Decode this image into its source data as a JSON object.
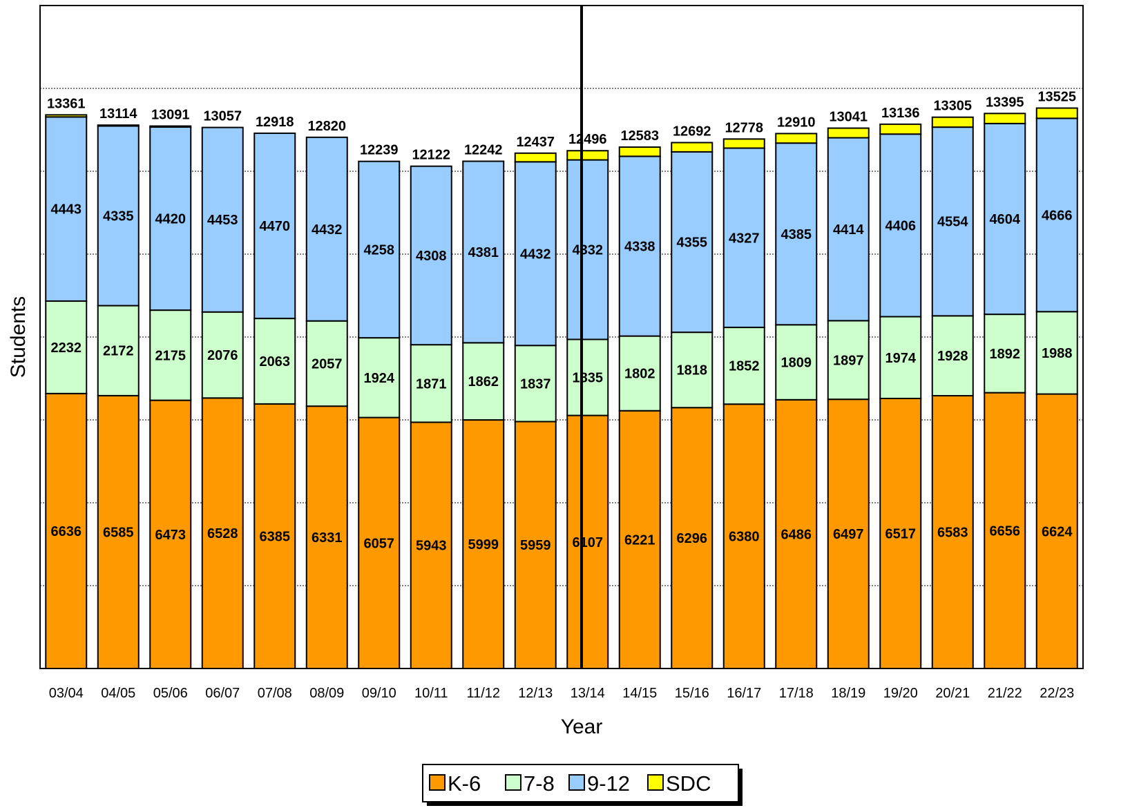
{
  "chart_data": {
    "type": "bar",
    "stacked": true,
    "xlabel": "Year",
    "ylabel": "Students",
    "ylim": [
      0,
      16000
    ],
    "grid": "horizontal dotted",
    "legend_position": "bottom",
    "categories": [
      "03/04",
      "04/05",
      "05/06",
      "06/07",
      "07/08",
      "08/09",
      "09/10",
      "10/11",
      "11/12",
      "12/13",
      "13/14",
      "14/15",
      "15/16",
      "16/17",
      "17/18",
      "18/19",
      "19/20",
      "20/21",
      "21/22",
      "22/23"
    ],
    "series": [
      {
        "name": "K-6",
        "color": "#ff9900",
        "values": [
          6636,
          6585,
          6473,
          6528,
          6385,
          6331,
          6057,
          5943,
          5999,
          5959,
          6107,
          6221,
          6296,
          6380,
          6486,
          6497,
          6517,
          6583,
          6656,
          6624
        ]
      },
      {
        "name": "7-8",
        "color": "#ccffcc",
        "values": [
          2232,
          2172,
          2175,
          2076,
          2063,
          2057,
          1924,
          1871,
          1862,
          1837,
          1835,
          1802,
          1818,
          1852,
          1809,
          1897,
          1974,
          1928,
          1892,
          1988
        ]
      },
      {
        "name": "9-12",
        "color": "#99ccff",
        "values": [
          4443,
          4335,
          4420,
          4453,
          4470,
          4432,
          4258,
          4308,
          4381,
          4432,
          4332,
          4338,
          4355,
          4327,
          4385,
          4414,
          4406,
          4554,
          4604,
          4666
        ]
      },
      {
        "name": "SDC",
        "color": "#ffff00",
        "values": [
          50,
          22,
          23,
          0,
          0,
          0,
          0,
          0,
          0,
          209,
          222,
          222,
          223,
          219,
          230,
          233,
          239,
          240,
          243,
          247
        ]
      }
    ],
    "totals": [
      13361,
      13114,
      13091,
      13057,
      12918,
      12820,
      12239,
      12122,
      12242,
      12437,
      12496,
      12583,
      12692,
      12778,
      12910,
      13041,
      13136,
      13305,
      13395,
      13525
    ],
    "divider_after": "12/13"
  }
}
